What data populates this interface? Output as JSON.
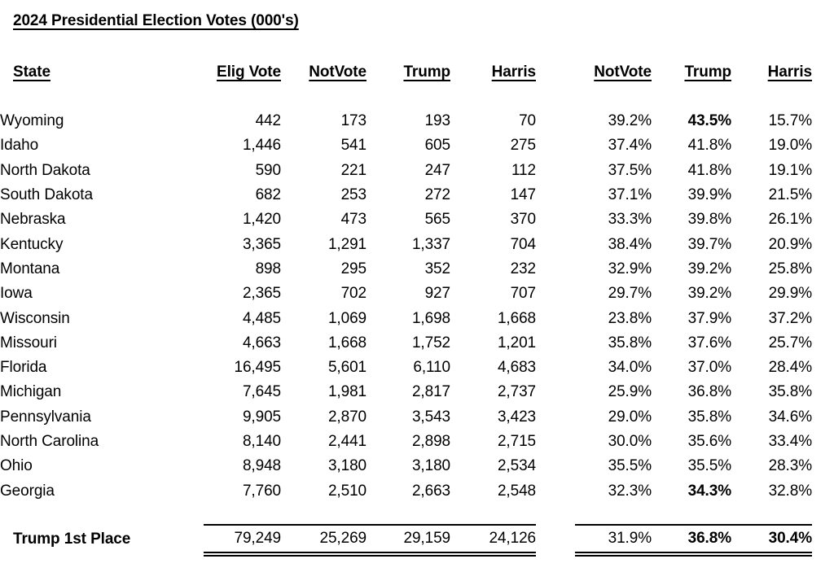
{
  "page": {
    "background": "#ffffff",
    "text_color": "#000000"
  },
  "title": "2024 Presidential Election Votes (000's)",
  "table": {
    "state_header": "State",
    "column_keys": [
      "elig-vote",
      "notvote",
      "trump",
      "harris",
      "notvote-pct",
      "trump-pct",
      "harris-pct"
    ],
    "headers": [
      "Elig Vote",
      "NotVote",
      "Trump",
      "Harris",
      "NotVote",
      "Trump",
      "Harris"
    ],
    "rows": [
      {
        "state": "Wyoming",
        "cells": [
          "442",
          "173",
          "193",
          "70",
          "39.2%",
          "43.5%",
          "15.7%"
        ],
        "bold": [
          5
        ]
      },
      {
        "state": "Idaho",
        "cells": [
          "1,446",
          "541",
          "605",
          "275",
          "37.4%",
          "41.8%",
          "19.0%"
        ],
        "bold": []
      },
      {
        "state": "North Dakota",
        "cells": [
          "590",
          "221",
          "247",
          "112",
          "37.5%",
          "41.8%",
          "19.1%"
        ],
        "bold": []
      },
      {
        "state": "South Dakota",
        "cells": [
          "682",
          "253",
          "272",
          "147",
          "37.1%",
          "39.9%",
          "21.5%"
        ],
        "bold": []
      },
      {
        "state": "Nebraska",
        "cells": [
          "1,420",
          "473",
          "565",
          "370",
          "33.3%",
          "39.8%",
          "26.1%"
        ],
        "bold": []
      },
      {
        "state": "Kentucky",
        "cells": [
          "3,365",
          "1,291",
          "1,337",
          "704",
          "38.4%",
          "39.7%",
          "20.9%"
        ],
        "bold": []
      },
      {
        "state": "Montana",
        "cells": [
          "898",
          "295",
          "352",
          "232",
          "32.9%",
          "39.2%",
          "25.8%"
        ],
        "bold": []
      },
      {
        "state": "Iowa",
        "cells": [
          "2,365",
          "702",
          "927",
          "707",
          "29.7%",
          "39.2%",
          "29.9%"
        ],
        "bold": []
      },
      {
        "state": "Wisconsin",
        "cells": [
          "4,485",
          "1,069",
          "1,698",
          "1,668",
          "23.8%",
          "37.9%",
          "37.2%"
        ],
        "bold": []
      },
      {
        "state": "Missouri",
        "cells": [
          "4,663",
          "1,668",
          "1,752",
          "1,201",
          "35.8%",
          "37.6%",
          "25.7%"
        ],
        "bold": []
      },
      {
        "state": "Florida",
        "cells": [
          "16,495",
          "5,601",
          "6,110",
          "4,683",
          "34.0%",
          "37.0%",
          "28.4%"
        ],
        "bold": []
      },
      {
        "state": "Michigan",
        "cells": [
          "7,645",
          "1,981",
          "2,817",
          "2,737",
          "25.9%",
          "36.8%",
          "35.8%"
        ],
        "bold": []
      },
      {
        "state": "Pennsylvania",
        "cells": [
          "9,905",
          "2,870",
          "3,543",
          "3,423",
          "29.0%",
          "35.8%",
          "34.6%"
        ],
        "bold": []
      },
      {
        "state": "North Carolina",
        "cells": [
          "8,140",
          "2,441",
          "2,898",
          "2,715",
          "30.0%",
          "35.6%",
          "33.4%"
        ],
        "bold": []
      },
      {
        "state": "Ohio",
        "cells": [
          "8,948",
          "3,180",
          "3,180",
          "2,534",
          "35.5%",
          "35.5%",
          "28.3%"
        ],
        "bold": []
      },
      {
        "state": "Georgia",
        "cells": [
          "7,760",
          "2,510",
          "2,663",
          "2,548",
          "32.3%",
          "34.3%",
          "32.8%"
        ],
        "bold": [
          5
        ]
      }
    ],
    "total": {
      "label": "Trump 1st Place",
      "values": [
        "79,249",
        "25,269",
        "29,159",
        "24,126",
        "31.9%",
        "36.8%",
        "30.4%"
      ],
      "bold": [
        5,
        6
      ]
    }
  }
}
